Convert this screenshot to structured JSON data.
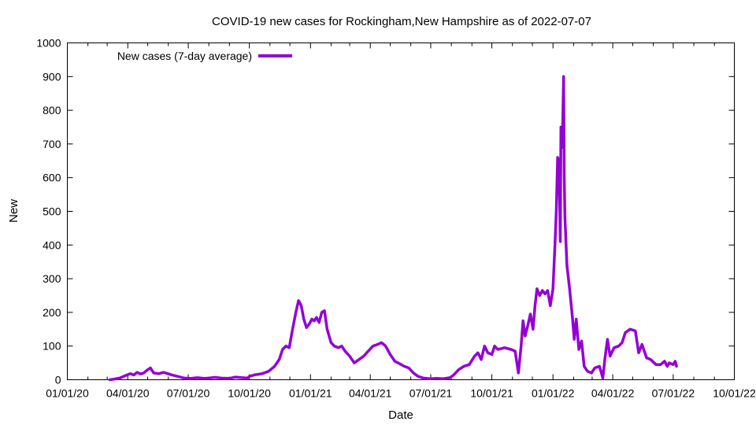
{
  "chart_data": {
    "type": "line",
    "title": "COVID-19 new cases for Rockingham,New Hampshire as of 2022-07-07",
    "xlabel": "Date",
    "ylabel": "New",
    "xlim": [
      "2020-01-01",
      "2022-10-01"
    ],
    "ylim": [
      0,
      1000
    ],
    "x_ticks": [
      "01/01/20",
      "04/01/20",
      "07/01/20",
      "10/01/20",
      "01/01/21",
      "04/01/21",
      "07/01/21",
      "10/01/21",
      "01/01/22",
      "04/01/22",
      "07/01/22",
      "10/01/22"
    ],
    "y_ticks": [
      0,
      100,
      200,
      300,
      400,
      500,
      600,
      700,
      800,
      900,
      1000
    ],
    "grid": false,
    "legend": {
      "position": "top-left"
    },
    "series": [
      {
        "name": "New cases (7-day average)",
        "color": "#9400d3",
        "points": [
          [
            "2020-03-05",
            0
          ],
          [
            "2020-03-12",
            2
          ],
          [
            "2020-03-20",
            5
          ],
          [
            "2020-03-28",
            12
          ],
          [
            "2020-04-05",
            18
          ],
          [
            "2020-04-10",
            14
          ],
          [
            "2020-04-15",
            22
          ],
          [
            "2020-04-20",
            17
          ],
          [
            "2020-04-25",
            20
          ],
          [
            "2020-05-01",
            30
          ],
          [
            "2020-05-05",
            35
          ],
          [
            "2020-05-10",
            20
          ],
          [
            "2020-05-18",
            18
          ],
          [
            "2020-05-25",
            22
          ],
          [
            "2020-06-05",
            15
          ],
          [
            "2020-06-15",
            10
          ],
          [
            "2020-06-25",
            5
          ],
          [
            "2020-07-05",
            4
          ],
          [
            "2020-07-15",
            6
          ],
          [
            "2020-07-25",
            4
          ],
          [
            "2020-08-01",
            5
          ],
          [
            "2020-08-10",
            7
          ],
          [
            "2020-08-20",
            5
          ],
          [
            "2020-09-01",
            4
          ],
          [
            "2020-09-10",
            8
          ],
          [
            "2020-09-20",
            6
          ],
          [
            "2020-09-28",
            5
          ],
          [
            "2020-10-01",
            10
          ],
          [
            "2020-10-10",
            15
          ],
          [
            "2020-10-20",
            18
          ],
          [
            "2020-10-30",
            25
          ],
          [
            "2020-11-08",
            40
          ],
          [
            "2020-11-15",
            60
          ],
          [
            "2020-11-20",
            90
          ],
          [
            "2020-11-25",
            100
          ],
          [
            "2020-11-30",
            95
          ],
          [
            "2020-12-05",
            150
          ],
          [
            "2020-12-10",
            200
          ],
          [
            "2020-12-14",
            235
          ],
          [
            "2020-12-18",
            220
          ],
          [
            "2020-12-22",
            180
          ],
          [
            "2020-12-26",
            155
          ],
          [
            "2020-12-30",
            165
          ],
          [
            "2021-01-03",
            180
          ],
          [
            "2021-01-07",
            175
          ],
          [
            "2021-01-10",
            185
          ],
          [
            "2021-01-14",
            170
          ],
          [
            "2021-01-18",
            200
          ],
          [
            "2021-01-22",
            205
          ],
          [
            "2021-01-26",
            150
          ],
          [
            "2021-02-01",
            110
          ],
          [
            "2021-02-06",
            100
          ],
          [
            "2021-02-12",
            95
          ],
          [
            "2021-02-17",
            100
          ],
          [
            "2021-02-22",
            85
          ],
          [
            "2021-03-01",
            70
          ],
          [
            "2021-03-08",
            50
          ],
          [
            "2021-03-15",
            60
          ],
          [
            "2021-03-22",
            70
          ],
          [
            "2021-03-29",
            85
          ],
          [
            "2021-04-05",
            100
          ],
          [
            "2021-04-12",
            105
          ],
          [
            "2021-04-18",
            110
          ],
          [
            "2021-04-24",
            100
          ],
          [
            "2021-05-01",
            75
          ],
          [
            "2021-05-08",
            55
          ],
          [
            "2021-05-15",
            48
          ],
          [
            "2021-05-22",
            40
          ],
          [
            "2021-05-29",
            35
          ],
          [
            "2021-06-05",
            20
          ],
          [
            "2021-06-12",
            10
          ],
          [
            "2021-06-20",
            5
          ],
          [
            "2021-06-30",
            3
          ],
          [
            "2021-07-10",
            4
          ],
          [
            "2021-07-20",
            3
          ],
          [
            "2021-07-30",
            6
          ],
          [
            "2021-08-05",
            15
          ],
          [
            "2021-08-12",
            30
          ],
          [
            "2021-08-20",
            40
          ],
          [
            "2021-08-28",
            45
          ],
          [
            "2021-09-05",
            70
          ],
          [
            "2021-09-10",
            80
          ],
          [
            "2021-09-15",
            60
          ],
          [
            "2021-09-20",
            100
          ],
          [
            "2021-09-25",
            80
          ],
          [
            "2021-10-01",
            75
          ],
          [
            "2021-10-05",
            100
          ],
          [
            "2021-10-10",
            90
          ],
          [
            "2021-10-20",
            95
          ],
          [
            "2021-10-30",
            90
          ],
          [
            "2021-11-05",
            85
          ],
          [
            "2021-11-10",
            20
          ],
          [
            "2021-11-14",
            100
          ],
          [
            "2021-11-17",
            175
          ],
          [
            "2021-11-20",
            130
          ],
          [
            "2021-11-24",
            160
          ],
          [
            "2021-11-28",
            195
          ],
          [
            "2021-12-02",
            150
          ],
          [
            "2021-12-05",
            220
          ],
          [
            "2021-12-08",
            270
          ],
          [
            "2021-12-12",
            250
          ],
          [
            "2021-12-16",
            265
          ],
          [
            "2021-12-20",
            255
          ],
          [
            "2021-12-24",
            265
          ],
          [
            "2021-12-28",
            220
          ],
          [
            "2022-01-01",
            270
          ],
          [
            "2022-01-04",
            400
          ],
          [
            "2022-01-06",
            500
          ],
          [
            "2022-01-08",
            660
          ],
          [
            "2022-01-10",
            650
          ],
          [
            "2022-01-12",
            410
          ],
          [
            "2022-01-13",
            750
          ],
          [
            "2022-01-15",
            690
          ],
          [
            "2022-01-17",
            900
          ],
          [
            "2022-01-18",
            600
          ],
          [
            "2022-01-19",
            480
          ],
          [
            "2022-01-22",
            340
          ],
          [
            "2022-01-26",
            270
          ],
          [
            "2022-01-30",
            190
          ],
          [
            "2022-02-02",
            120
          ],
          [
            "2022-02-05",
            180
          ],
          [
            "2022-02-09",
            90
          ],
          [
            "2022-02-13",
            115
          ],
          [
            "2022-02-17",
            40
          ],
          [
            "2022-02-22",
            25
          ],
          [
            "2022-02-28",
            20
          ],
          [
            "2022-03-05",
            35
          ],
          [
            "2022-03-12",
            40
          ],
          [
            "2022-03-17",
            5
          ],
          [
            "2022-03-20",
            60
          ],
          [
            "2022-03-24",
            120
          ],
          [
            "2022-03-28",
            70
          ],
          [
            "2022-04-03",
            95
          ],
          [
            "2022-04-10",
            100
          ],
          [
            "2022-04-15",
            110
          ],
          [
            "2022-04-20",
            140
          ],
          [
            "2022-04-27",
            150
          ],
          [
            "2022-05-05",
            145
          ],
          [
            "2022-05-10",
            80
          ],
          [
            "2022-05-15",
            105
          ],
          [
            "2022-05-22",
            65
          ],
          [
            "2022-05-28",
            60
          ],
          [
            "2022-06-05",
            45
          ],
          [
            "2022-06-12",
            45
          ],
          [
            "2022-06-18",
            55
          ],
          [
            "2022-06-22",
            40
          ],
          [
            "2022-06-25",
            50
          ],
          [
            "2022-07-01",
            45
          ],
          [
            "2022-07-04",
            55
          ],
          [
            "2022-07-06",
            40
          ]
        ]
      }
    ]
  }
}
